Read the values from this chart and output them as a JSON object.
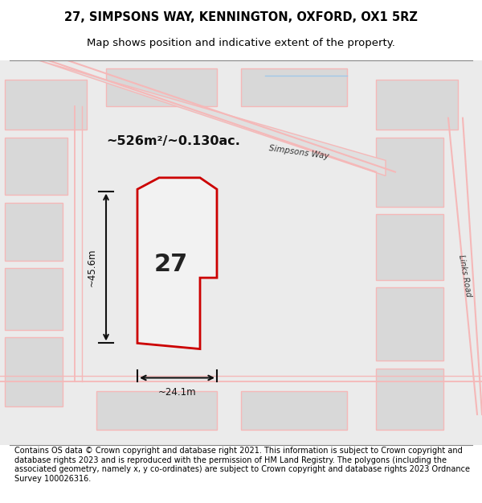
{
  "title_line1": "27, SIMPSONS WAY, KENNINGTON, OXFORD, OX1 5RZ",
  "title_line2": "Map shows position and indicative extent of the property.",
  "area_text": "~526m²/~0.130ac.",
  "plot_number": "27",
  "dim_vertical": "~45.6m",
  "dim_horizontal": "~24.1m",
  "footer_text": "Contains OS data © Crown copyright and database right 2021. This information is subject to Crown copyright and database rights 2023 and is reproduced with the permission of HM Land Registry. The polygons (including the associated geometry, namely x, y co-ordinates) are subject to Crown copyright and database rights 2023 Ordnance Survey 100026316.",
  "bg_color": "#e8e8e8",
  "map_bg": "#f0f0f0",
  "road_color_main": "#f5b8b8",
  "road_color_light": "#f5c8c8",
  "plot_outline_color": "#cc0000",
  "plot_fill_color": "#f0f0f0",
  "arrow_color": "#111111",
  "street_label_simpsons": "Simpsons Way",
  "street_label_links": "Links Road"
}
